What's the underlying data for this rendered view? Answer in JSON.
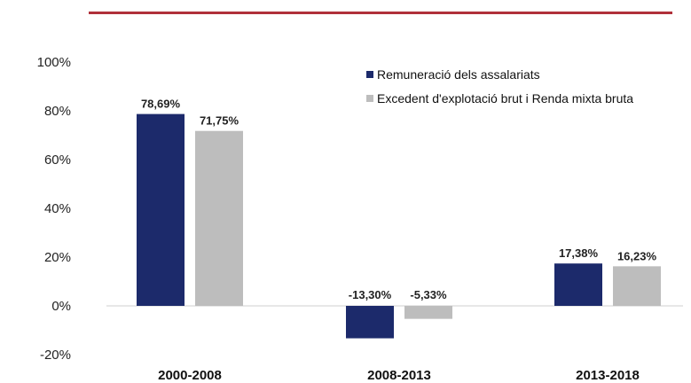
{
  "chart_data": {
    "type": "bar",
    "categories": [
      "2000-2008",
      "2008-2013",
      "2013-2018"
    ],
    "series": [
      {
        "name": "Remuneració dels assalariats",
        "color": "#1c2a6b",
        "values": [
          78.69,
          -13.3,
          17.38
        ],
        "labels": [
          "78,69%",
          "-13,30%",
          "17,38%"
        ]
      },
      {
        "name": "Excedent d'explotació brut i Renda mixta bruta",
        "color": "#bdbdbd",
        "values": [
          71.75,
          -5.33,
          16.23
        ],
        "labels": [
          "71,75%",
          "-5,33%",
          "16,23%"
        ]
      }
    ],
    "yticks": [
      "100%",
      "80%",
      "60%",
      "40%",
      "20%",
      "0%",
      "-20%"
    ],
    "ytick_values": [
      100,
      80,
      60,
      40,
      20,
      0,
      -20
    ],
    "ylim": [
      -20,
      100
    ],
    "grid": false,
    "legend_position": "top-right",
    "title": "",
    "xlabel": "",
    "ylabel": ""
  },
  "accent_color": "#b0303a"
}
